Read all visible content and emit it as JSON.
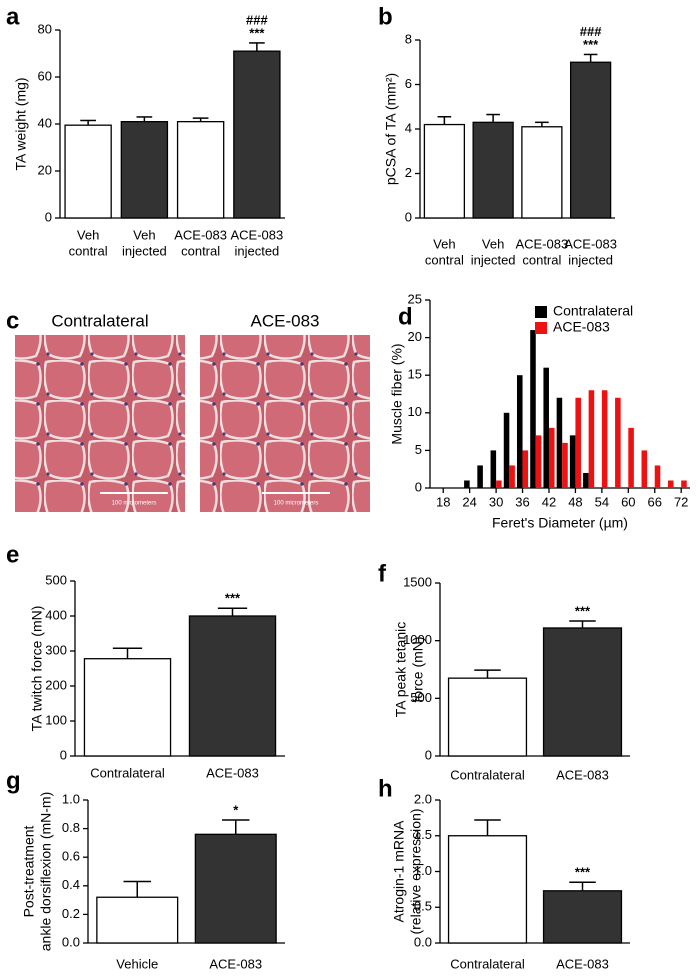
{
  "chart_data": [
    {
      "panel": "a",
      "type": "bar",
      "ylabel": "TA weight (mg)",
      "categories": [
        [
          "Veh",
          "contral"
        ],
        [
          "Veh",
          "injected"
        ],
        [
          "ACE-083",
          "contral"
        ],
        [
          "ACE-083",
          "injected"
        ]
      ],
      "values": [
        39.5,
        41,
        41,
        71
      ],
      "errors": [
        2,
        2,
        1.5,
        3.5
      ],
      "colors": [
        "#ffffff",
        "#333333",
        "#ffffff",
        "#333333"
      ],
      "significance": [
        null,
        null,
        null,
        [
          "###",
          "***"
        ]
      ],
      "ylim": [
        0,
        80
      ],
      "yticks": [
        0,
        20,
        40,
        60,
        80
      ]
    },
    {
      "panel": "b",
      "type": "bar",
      "ylabel": "pCSA of TA (mm²)",
      "categories": [
        [
          "Veh",
          "contral"
        ],
        [
          "Veh",
          "injected"
        ],
        [
          "ACE-083",
          "contral"
        ],
        [
          "ACE-083",
          "injected"
        ]
      ],
      "values": [
        4.2,
        4.3,
        4.1,
        7.0
      ],
      "errors": [
        0.35,
        0.35,
        0.2,
        0.35
      ],
      "colors": [
        "#ffffff",
        "#333333",
        "#ffffff",
        "#333333"
      ],
      "significance": [
        null,
        null,
        null,
        [
          "###",
          "***"
        ]
      ],
      "ylim": [
        0,
        8
      ],
      "yticks": [
        0,
        2,
        4,
        6,
        8
      ]
    },
    {
      "panel": "d",
      "type": "histogram",
      "ylabel": "Muscle fiber (%)",
      "xlabel": "Feret's Diameter (µm)",
      "x": [
        24,
        27,
        30,
        33,
        36,
        39,
        42,
        45,
        48,
        51,
        54,
        57,
        60,
        63,
        66,
        69,
        72
      ],
      "series": [
        {
          "name": "Contralateral",
          "color": "#000000",
          "values": [
            1,
            3,
            5,
            10,
            15,
            21,
            16,
            12,
            7,
            2,
            0,
            0,
            0,
            0,
            0,
            0,
            0
          ]
        },
        {
          "name": "ACE-083",
          "color": "#ee1111",
          "values": [
            0,
            0,
            1,
            3,
            5,
            7,
            8,
            6,
            12,
            13,
            13,
            12,
            8,
            5,
            3,
            1,
            1
          ]
        }
      ],
      "legend": "upper right",
      "xlim": [
        15,
        74
      ],
      "xticks": [
        18,
        24,
        30,
        36,
        42,
        48,
        54,
        60,
        66,
        72
      ],
      "ylim": [
        0,
        25
      ],
      "yticks": [
        0,
        5,
        10,
        15,
        20,
        25
      ]
    },
    {
      "panel": "e",
      "type": "bar",
      "ylabel": "TA twitch force (mN)",
      "categories": [
        "Contralateral",
        "ACE-083"
      ],
      "values": [
        278,
        400
      ],
      "errors": [
        30,
        22
      ],
      "colors": [
        "#ffffff",
        "#333333"
      ],
      "significance": [
        null,
        [
          "***"
        ]
      ],
      "ylim": [
        0,
        500
      ],
      "yticks": [
        0,
        100,
        200,
        300,
        400,
        500
      ]
    },
    {
      "panel": "f",
      "type": "bar",
      "ylabel": [
        "TA peak tetanic",
        "force (mN)"
      ],
      "categories": [
        "Contralateral",
        "ACE-083"
      ],
      "values": [
        675,
        1110
      ],
      "errors": [
        70,
        60
      ],
      "colors": [
        "#ffffff",
        "#333333"
      ],
      "significance": [
        null,
        [
          "***"
        ]
      ],
      "ylim": [
        0,
        1500
      ],
      "yticks": [
        0,
        500,
        1000,
        1500
      ]
    },
    {
      "panel": "g",
      "type": "bar",
      "ylabel": [
        "Post-treatment",
        "ankle dorsiflexion (mN-m)"
      ],
      "categories": [
        "Vehicle",
        "ACE-083"
      ],
      "values": [
        0.32,
        0.76
      ],
      "errors": [
        0.11,
        0.1
      ],
      "colors": [
        "#ffffff",
        "#333333"
      ],
      "significance": [
        null,
        [
          "*"
        ]
      ],
      "ylim": [
        0,
        1.0
      ],
      "yticks": [
        {
          "value": 0,
          "label": "0.0"
        },
        0.2,
        0.4,
        0.6,
        0.8,
        {
          "value": 1,
          "label": "1.0"
        }
      ]
    },
    {
      "panel": "h",
      "type": "bar",
      "ylabel": [
        "Atrogin-1 mRNA",
        "(relative expression)"
      ],
      "categories": [
        "Contralateral",
        "ACE-083"
      ],
      "values": [
        1.5,
        0.73
      ],
      "errors": [
        0.22,
        0.12
      ],
      "colors": [
        "#ffffff",
        "#333333"
      ],
      "significance": [
        null,
        [
          "***"
        ]
      ],
      "ylim": [
        0,
        2.0
      ],
      "yticks": [
        {
          "value": 0,
          "label": "0.0"
        },
        0.5,
        {
          "value": 1,
          "label": "1.0"
        },
        1.5,
        {
          "value": 2,
          "label": "2.0"
        }
      ]
    }
  ],
  "micrographs": {
    "panel": "c",
    "images": [
      {
        "title": "Contralateral",
        "scale": "100 micrometers"
      },
      {
        "title": "ACE-083",
        "scale": "100 micrometers"
      }
    ]
  }
}
